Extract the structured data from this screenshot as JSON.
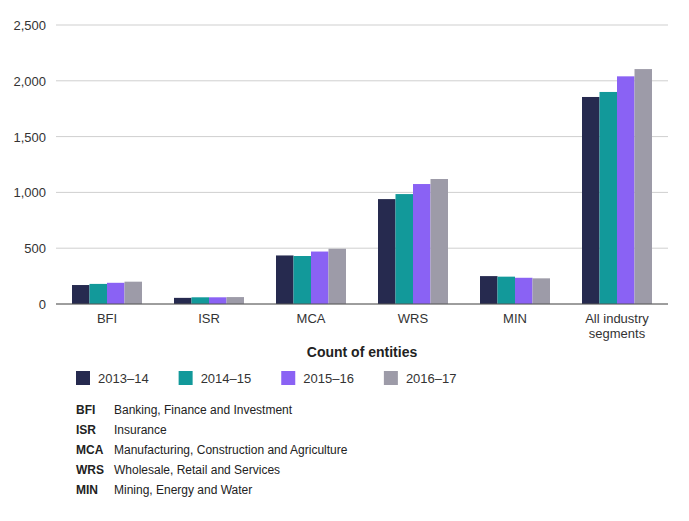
{
  "chart_data": {
    "type": "bar",
    "x_label": "Count of entities",
    "categories": [
      "BFI",
      "ISR",
      "MCA",
      "WRS",
      "MIN",
      "All industry segments"
    ],
    "series": [
      {
        "name": "2013–14",
        "color": "#262a4f",
        "values": [
          170,
          55,
          435,
          940,
          250,
          1855
        ]
      },
      {
        "name": "2014–15",
        "color": "#12999a",
        "values": [
          180,
          60,
          430,
          985,
          245,
          1900
        ]
      },
      {
        "name": "2015–16",
        "color": "#8a62f4",
        "values": [
          190,
          60,
          470,
          1075,
          235,
          2040
        ]
      },
      {
        "name": "2016–17",
        "color": "#9d9ba8",
        "values": [
          200,
          62,
          495,
          1120,
          230,
          2105
        ]
      }
    ],
    "ylim": [
      0,
      2500
    ],
    "yticks": [
      0,
      500,
      {
        "value": 1000,
        "label": "1,000"
      },
      {
        "value": 1500,
        "label": "1,500"
      },
      {
        "value": 2000,
        "label": "2,000"
      },
      {
        "value": 2500,
        "label": "2,500"
      }
    ],
    "grid": true,
    "legend": "bottom",
    "annotations": [
      {
        "abbr": "BFI",
        "text": "Banking, Finance and Investment"
      },
      {
        "abbr": "ISR",
        "text": "Insurance"
      },
      {
        "abbr": "MCA",
        "text": "Manufacturing, Construction and Agriculture"
      },
      {
        "abbr": "WRS",
        "text": "Wholesale, Retail and Services"
      },
      {
        "abbr": "MIN",
        "text": "Mining, Energy and Water"
      }
    ]
  }
}
